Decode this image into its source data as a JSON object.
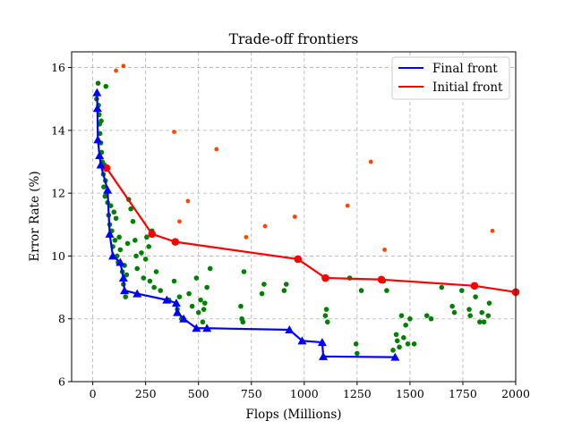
{
  "chart_data": {
    "type": "scatter",
    "title": "Trade-off frontiers",
    "xlabel": "Flops (Millions)",
    "ylabel": "Error Rate (%)",
    "xlim": [
      -100,
      2000
    ],
    "ylim": [
      6,
      16.5
    ],
    "xticks": [
      "0",
      "250",
      "500",
      "750",
      "1000",
      "1250",
      "1500",
      "1750",
      "2000"
    ],
    "yticks": [
      "6",
      "8",
      "10",
      "12",
      "14",
      "16"
    ],
    "grid": true,
    "legend_position": "top-right",
    "colors": {
      "final_front": "#0000ff",
      "initial_front": "#ff0000",
      "final_population": "#008000",
      "initial_population": "#ff4500"
    },
    "series": [
      {
        "name": "Final front",
        "kind": "line",
        "marker": "triangle",
        "points": [
          [
            20,
            15.2
          ],
          [
            22,
            14.7
          ],
          [
            24,
            13.7
          ],
          [
            32,
            13.2
          ],
          [
            38,
            12.9
          ],
          [
            70,
            12.1
          ],
          [
            80,
            10.7
          ],
          [
            95,
            10.0
          ],
          [
            130,
            9.8
          ],
          [
            145,
            9.3
          ],
          [
            150,
            8.9
          ],
          [
            210,
            8.8
          ],
          [
            350,
            8.6
          ],
          [
            395,
            8.5
          ],
          [
            400,
            8.2
          ],
          [
            430,
            8.0
          ],
          [
            490,
            7.7
          ],
          [
            540,
            7.7
          ],
          [
            930,
            7.65
          ],
          [
            990,
            7.3
          ],
          [
            1085,
            7.25
          ],
          [
            1090,
            6.8
          ],
          [
            1430,
            6.78
          ]
        ]
      },
      {
        "name": "Initial front",
        "kind": "line",
        "marker": "circle",
        "points": [
          [
            65,
            12.8
          ],
          [
            280,
            10.7
          ],
          [
            390,
            10.45
          ],
          [
            970,
            9.9
          ],
          [
            1100,
            9.3
          ],
          [
            1365,
            9.25
          ],
          [
            1805,
            9.05
          ],
          [
            2000,
            8.85
          ]
        ]
      },
      {
        "name": "",
        "kind": "scatter",
        "role": "final population",
        "points": [
          [
            18,
            15.0
          ],
          [
            25,
            15.5
          ],
          [
            27,
            14.8
          ],
          [
            30,
            14.5
          ],
          [
            32,
            14.2
          ],
          [
            34,
            13.9
          ],
          [
            38,
            13.6
          ],
          [
            40,
            14.3
          ],
          [
            42,
            13.3
          ],
          [
            45,
            13.0
          ],
          [
            50,
            12.6
          ],
          [
            52,
            12.2
          ],
          [
            55,
            12.9
          ],
          [
            58,
            11.9
          ],
          [
            60,
            12.4
          ],
          [
            62,
            15.4
          ],
          [
            65,
            12.0
          ],
          [
            70,
            11.7
          ],
          [
            75,
            11.3
          ],
          [
            80,
            11.0
          ],
          [
            85,
            11.6
          ],
          [
            90,
            10.8
          ],
          [
            95,
            10.3
          ],
          [
            100,
            11.4
          ],
          [
            105,
            10.5
          ],
          [
            110,
            11.2
          ],
          [
            115,
            10.0
          ],
          [
            120,
            9.8
          ],
          [
            125,
            10.6
          ],
          [
            130,
            10.2
          ],
          [
            140,
            9.5
          ],
          [
            145,
            9.1
          ],
          [
            150,
            9.7
          ],
          [
            155,
            8.7
          ],
          [
            160,
            9.4
          ],
          [
            165,
            10.4
          ],
          [
            170,
            11.8
          ],
          [
            180,
            11.5
          ],
          [
            190,
            11.1
          ],
          [
            200,
            10.5
          ],
          [
            205,
            10.0
          ],
          [
            210,
            9.6
          ],
          [
            230,
            10.1
          ],
          [
            240,
            9.3
          ],
          [
            250,
            9.9
          ],
          [
            255,
            10.6
          ],
          [
            265,
            10.3
          ],
          [
            270,
            9.2
          ],
          [
            280,
            10.8
          ],
          [
            290,
            9.0
          ],
          [
            300,
            9.5
          ],
          [
            320,
            8.9
          ],
          [
            360,
            8.6
          ],
          [
            385,
            9.2
          ],
          [
            400,
            8.3
          ],
          [
            410,
            8.7
          ],
          [
            420,
            8.0
          ],
          [
            455,
            8.8
          ],
          [
            470,
            8.4
          ],
          [
            490,
            9.3
          ],
          [
            500,
            8.2
          ],
          [
            510,
            8.6
          ],
          [
            520,
            7.9
          ],
          [
            525,
            8.3
          ],
          [
            530,
            8.5
          ],
          [
            540,
            9.0
          ],
          [
            555,
            9.6
          ],
          [
            700,
            8.4
          ],
          [
            705,
            8.0
          ],
          [
            710,
            7.9
          ],
          [
            715,
            9.5
          ],
          [
            800,
            8.8
          ],
          [
            810,
            9.1
          ],
          [
            905,
            8.9
          ],
          [
            915,
            9.1
          ],
          [
            1100,
            8.1
          ],
          [
            1105,
            8.3
          ],
          [
            1110,
            7.9
          ],
          [
            1215,
            9.3
          ],
          [
            1245,
            7.2
          ],
          [
            1250,
            6.9
          ],
          [
            1270,
            8.9
          ],
          [
            1375,
            9.2
          ],
          [
            1390,
            8.9
          ],
          [
            1420,
            7.0
          ],
          [
            1435,
            7.5
          ],
          [
            1440,
            7.3
          ],
          [
            1450,
            7.1
          ],
          [
            1460,
            8.1
          ],
          [
            1470,
            7.4
          ],
          [
            1480,
            7.8
          ],
          [
            1490,
            7.2
          ],
          [
            1500,
            8.0
          ],
          [
            1520,
            7.2
          ],
          [
            1580,
            8.1
          ],
          [
            1600,
            8.0
          ],
          [
            1650,
            9.0
          ],
          [
            1700,
            8.4
          ],
          [
            1710,
            8.2
          ],
          [
            1745,
            8.9
          ],
          [
            1780,
            8.3
          ],
          [
            1785,
            8.1
          ],
          [
            1810,
            8.7
          ],
          [
            1830,
            7.9
          ],
          [
            1840,
            8.2
          ],
          [
            1850,
            7.9
          ],
          [
            1870,
            8.1
          ],
          [
            1875,
            8.5
          ]
        ]
      },
      {
        "name": "",
        "kind": "scatter",
        "role": "initial population",
        "points": [
          [
            110,
            15.9
          ],
          [
            145,
            16.05
          ],
          [
            385,
            13.95
          ],
          [
            410,
            11.1
          ],
          [
            450,
            11.75
          ],
          [
            585,
            13.4
          ],
          [
            725,
            10.6
          ],
          [
            815,
            10.95
          ],
          [
            955,
            11.25
          ],
          [
            1205,
            11.6
          ],
          [
            1315,
            13.0
          ],
          [
            1380,
            10.2
          ],
          [
            1890,
            10.8
          ]
        ]
      }
    ]
  }
}
